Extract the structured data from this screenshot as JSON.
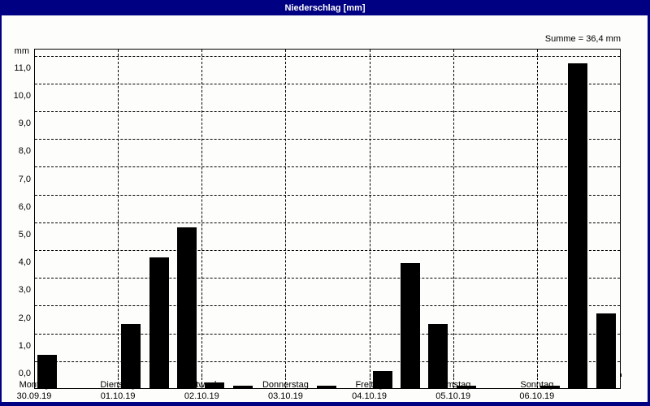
{
  "window": {
    "title": "Niederschlag [mm]",
    "titlebar_color": "#000082",
    "titlebar_text_color": "#ffffff",
    "background_color": "#fdfdfb"
  },
  "chart_data": {
    "type": "bar",
    "title": "Niederschlag [mm]",
    "unit_label": "mm",
    "sum_label": "Summe = 36,4 mm",
    "sum_value": 36.4,
    "bar_color": "#000000",
    "grid": "dashed",
    "ylim": [
      0,
      12.2
    ],
    "ytick_step": 1.0,
    "ytick_labels": [
      "0,0",
      "1,0",
      "2,0",
      "3,0",
      "4,0",
      "5,0",
      "6,0",
      "7,0",
      "8,0",
      "9,0",
      "10,0",
      "11,0"
    ],
    "gridline_values": [
      1,
      2,
      3,
      4,
      5,
      6,
      7,
      8,
      9,
      10,
      11,
      12
    ],
    "slots_per_day": 3,
    "days": [
      {
        "weekday": "Montag",
        "date": "30.09.19",
        "values": [
          1.2,
          0,
          0
        ]
      },
      {
        "weekday": "Dienstag",
        "date": "01.10.19",
        "values": [
          2.3,
          4.7,
          5.8
        ]
      },
      {
        "weekday": "Mittwoch",
        "date": "02.10.19",
        "values": [
          0.2,
          0.1,
          0
        ]
      },
      {
        "weekday": "Donnerstag",
        "date": "03.10.19",
        "values": [
          0,
          0.1,
          0
        ]
      },
      {
        "weekday": "Freitag",
        "date": "04.10.19",
        "values": [
          0.6,
          4.5,
          2.3
        ]
      },
      {
        "weekday": "Samstag",
        "date": "05.10.19",
        "values": [
          0.1,
          0,
          0
        ]
      },
      {
        "weekday": "Sonntag",
        "date": "06.10.19",
        "values": [
          0.1,
          11.7,
          2.7
        ]
      }
    ]
  }
}
